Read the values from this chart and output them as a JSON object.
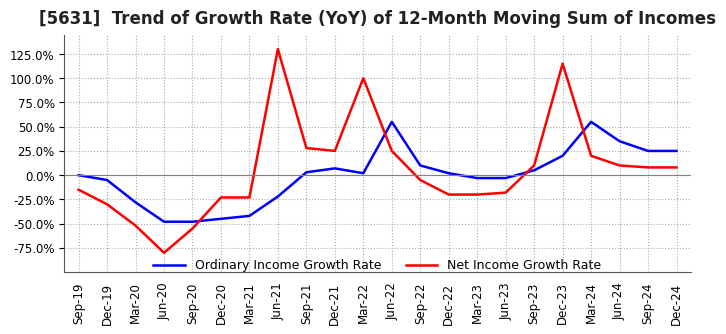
{
  "title": "[5631]  Trend of Growth Rate (YoY) of 12-Month Moving Sum of Incomes",
  "x_labels": [
    "Sep-19",
    "Dec-19",
    "Mar-20",
    "Jun-20",
    "Sep-20",
    "Dec-20",
    "Mar-21",
    "Jun-21",
    "Sep-21",
    "Dec-21",
    "Mar-22",
    "Jun-22",
    "Sep-22",
    "Dec-22",
    "Mar-23",
    "Jun-23",
    "Sep-23",
    "Dec-23",
    "Mar-24",
    "Jun-24",
    "Sep-24",
    "Dec-24"
  ],
  "ordinary_income": [
    0.0,
    -5.0,
    -28.0,
    -48.0,
    -48.0,
    -45.0,
    -42.0,
    -22.0,
    3.0,
    7.0,
    2.0,
    55.0,
    10.0,
    2.0,
    -3.0,
    -3.0,
    5.0,
    20.0,
    55.0,
    35.0,
    25.0,
    25.0
  ],
  "net_income": [
    -15.0,
    -30.0,
    -52.0,
    -80.0,
    -55.0,
    -23.0,
    -23.0,
    130.0,
    28.0,
    25.0,
    100.0,
    25.0,
    -5.0,
    -20.0,
    -20.0,
    -18.0,
    10.0,
    115.0,
    20.0,
    10.0,
    8.0,
    8.0
  ],
  "ylim": [
    -100,
    145
  ],
  "yticks": [
    -75.0,
    -50.0,
    -25.0,
    0.0,
    25.0,
    50.0,
    75.0,
    100.0,
    125.0
  ],
  "ordinary_color": "#0000FF",
  "net_color": "#FF0000",
  "background_color": "#FFFFFF",
  "grid_color": "#AAAAAA",
  "title_fontsize": 12,
  "tick_fontsize": 8.5,
  "legend_labels": [
    "Ordinary Income Growth Rate",
    "Net Income Growth Rate"
  ]
}
